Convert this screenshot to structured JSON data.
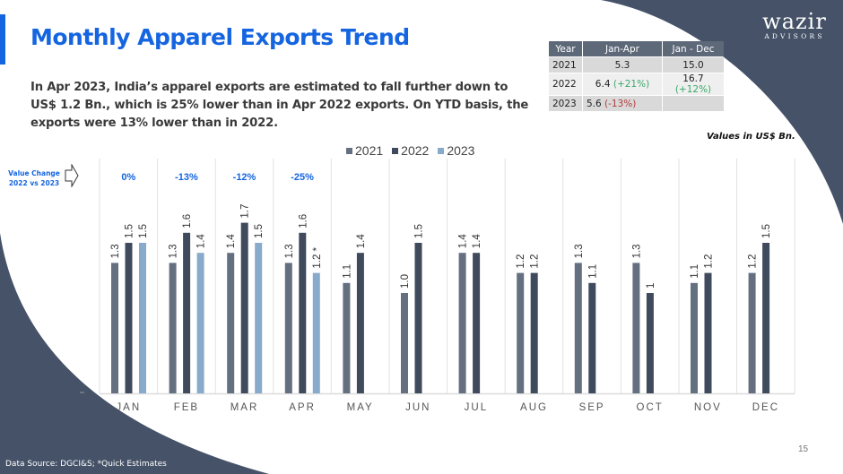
{
  "header": {
    "title": "Monthly Apparel Exports Trend",
    "description": "In Apr 2023, India’s apparel exports are estimated to fall further down to US$ 1.2 Bn., which is 25% lower than in Apr 2022 exports. On YTD basis, the exports were 13% lower than in 2022."
  },
  "logo": {
    "name": "wazir",
    "subtitle": "ADVISORS"
  },
  "summary_table": {
    "headers": [
      "Year",
      "Jan-Apr",
      "Jan - Dec"
    ],
    "rows": [
      {
        "year": "2021",
        "jan_apr": "5.3",
        "jan_apr_change": "",
        "jan_dec": "15.0",
        "jan_dec_change": ""
      },
      {
        "year": "2022",
        "jan_apr": "6.4",
        "jan_apr_change": "(+21%)",
        "jan_dec": "16.7",
        "jan_dec_change": "(+12%)"
      },
      {
        "year": "2023",
        "jan_apr": "5.6",
        "jan_apr_change": "(-13%)",
        "jan_dec": "",
        "jan_dec_change": ""
      }
    ]
  },
  "units_note": "Values in US$ Bn.",
  "value_change": {
    "label_line1": "Value Change",
    "label_line2": "2022 vs 2023",
    "values": [
      "0%",
      "-13%",
      "-12%",
      "-25%"
    ]
  },
  "footer": {
    "source": "Data Source: DGCI&S; *Quick Estimates",
    "page_number": "15"
  },
  "colors": {
    "accent": "#1565e0",
    "s2021": "#646f80",
    "s2022": "#3f4a5c",
    "s2023": "#88aacb",
    "dark_bg": "#455268"
  },
  "chart_data": {
    "type": "bar",
    "title": "",
    "xlabel": "",
    "ylabel": "",
    "ylim": [
      0,
      2.0
    ],
    "grid": false,
    "legend_position": "top",
    "categories": [
      "JAN",
      "FEB",
      "MAR",
      "APR",
      "MAY",
      "JUN",
      "JUL",
      "AUG",
      "SEP",
      "OCT",
      "NOV",
      "DEC"
    ],
    "series": [
      {
        "name": "2021",
        "values": [
          1.3,
          1.3,
          1.4,
          1.3,
          1.1,
          1.0,
          1.4,
          1.2,
          1.3,
          1.3,
          1.1,
          1.2
        ],
        "labels": [
          "1.3",
          "1.3",
          "1.4",
          "1.3",
          "1.1",
          "1.0",
          "1.4",
          "1.2",
          "1.3",
          "1.3",
          "1.1",
          "1.2"
        ]
      },
      {
        "name": "2022",
        "values": [
          1.5,
          1.6,
          1.7,
          1.6,
          1.4,
          1.5,
          1.4,
          1.2,
          1.1,
          1.0,
          1.2,
          1.5
        ],
        "labels": [
          "1.5",
          "1.6",
          "1.7",
          "1.6",
          "1.4",
          "1.5",
          "1.4",
          "1.2",
          "1.1",
          "1",
          "1.2",
          "1.5"
        ]
      },
      {
        "name": "2023",
        "values": [
          1.5,
          1.4,
          1.5,
          1.2,
          null,
          null,
          null,
          null,
          null,
          null,
          null,
          null
        ],
        "labels": [
          "1.5",
          "1.4",
          "1.5",
          "1.2 *",
          null,
          null,
          null,
          null,
          null,
          null,
          null,
          null
        ]
      }
    ]
  }
}
